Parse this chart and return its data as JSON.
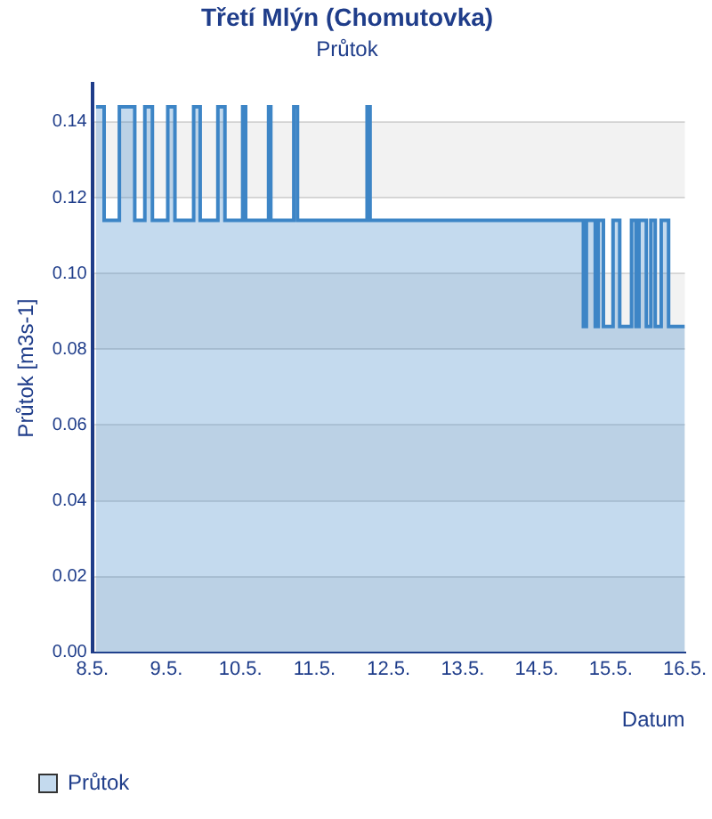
{
  "chart_data": {
    "type": "area",
    "title": "Třetí Mlýn (Chomutovka)",
    "subtitle": "Průtok",
    "xlabel": "Datum",
    "ylabel": "Průtok [m3s-1]",
    "xlim": [
      "--05-08",
      "--05-16"
    ],
    "xticks": [
      {
        "value": "--05-08",
        "label": "8.5."
      },
      {
        "value": "--05-09",
        "label": "9.5."
      },
      {
        "value": "--05-10",
        "label": "10.5."
      },
      {
        "value": "--05-11",
        "label": "11.5."
      },
      {
        "value": "--05-12",
        "label": "12.5."
      },
      {
        "value": "--05-13",
        "label": "13.5."
      },
      {
        "value": "--05-14",
        "label": "14.5."
      },
      {
        "value": "--05-15",
        "label": "15.5."
      },
      {
        "value": "--05-16",
        "label": "16.5."
      }
    ],
    "ylim": [
      0,
      0.15
    ],
    "yticks": [
      {
        "value": 0,
        "label": "0.00"
      },
      {
        "value": 0.02,
        "label": "0.02"
      },
      {
        "value": 0.04,
        "label": "0.04"
      },
      {
        "value": 0.06,
        "label": "0.06"
      },
      {
        "value": 0.08,
        "label": "0.08"
      },
      {
        "value": 0.1,
        "label": "0.10"
      },
      {
        "value": 0.12,
        "label": "0.12"
      },
      {
        "value": 0.14,
        "label": "0.14"
      }
    ],
    "grid": "y",
    "legend": "bottom",
    "series": [
      {
        "name": "Průtok",
        "color": "#3d85c6",
        "x": [
          "--05-08T01:12",
          "--05-08T03:50",
          "--05-08T03:50",
          "--05-08T08:46",
          "--05-08T08:46",
          "--05-08T13:45",
          "--05-08T13:45",
          "--05-08T17:01",
          "--05-08T17:01",
          "--05-08T19:28",
          "--05-08T19:28",
          "--05-09T00:27",
          "--05-09T00:27",
          "--05-09T02:46",
          "--05-09T02:46",
          "--05-09T08:50",
          "--05-09T08:50",
          "--05-09T10:57",
          "--05-09T10:57",
          "--05-09T16:41",
          "--05-09T16:41",
          "--05-09T18:58",
          "--05-09T18:58",
          "--05-10T00:43",
          "--05-10T00:43",
          "--05-10T01:41",
          "--05-10T01:41",
          "--05-10T09:07",
          "--05-10T09:07",
          "--05-10T09:50",
          "--05-10T09:50",
          "--05-10T17:17",
          "--05-10T17:17",
          "--05-10T18:29",
          "--05-10T18:29",
          "--05-11T17:02",
          "--05-11T17:02",
          "--05-11T18:00",
          "--05-11T18:00",
          "--05-14T15:07",
          "--05-14T15:07",
          "--05-14T16:05",
          "--05-14T16:05",
          "--05-14T18:58",
          "--05-14T18:58",
          "--05-14T19:55",
          "--05-14T19:55",
          "--05-14T21:36",
          "--05-14T21:36",
          "--05-15T00:43",
          "--05-15T00:43",
          "--05-15T02:53",
          "--05-15T02:53",
          "--05-15T06:43",
          "--05-15T06:43",
          "--05-15T08:10",
          "--05-15T08:10",
          "--05-15T09:07",
          "--05-15T09:07",
          "--05-15T11:31",
          "--05-15T11:31",
          "--05-15T12:58",
          "--05-15T12:58",
          "--05-15T14:24",
          "--05-15T14:24",
          "--05-15T16:19",
          "--05-15T16:19",
          "--05-15T18:43",
          "--05-15T18:43",
          "--05-16T00:00"
        ],
        "values": [
          0.144,
          0.144,
          0.114,
          0.114,
          0.144,
          0.144,
          0.114,
          0.114,
          0.144,
          0.144,
          0.114,
          0.114,
          0.144,
          0.144,
          0.114,
          0.114,
          0.144,
          0.144,
          0.114,
          0.114,
          0.144,
          0.144,
          0.114,
          0.114,
          0.144,
          0.144,
          0.114,
          0.114,
          0.144,
          0.144,
          0.114,
          0.114,
          0.144,
          0.144,
          0.114,
          0.114,
          0.144,
          0.144,
          0.114,
          0.114,
          0.086,
          0.086,
          0.114,
          0.114,
          0.086,
          0.086,
          0.114,
          0.114,
          0.086,
          0.086,
          0.114,
          0.114,
          0.086,
          0.086,
          0.114,
          0.114,
          0.086,
          0.086,
          0.114,
          0.114,
          0.086,
          0.086,
          0.114,
          0.114,
          0.086,
          0.086,
          0.114,
          0.114,
          0.086,
          0.086
        ]
      }
    ]
  }
}
